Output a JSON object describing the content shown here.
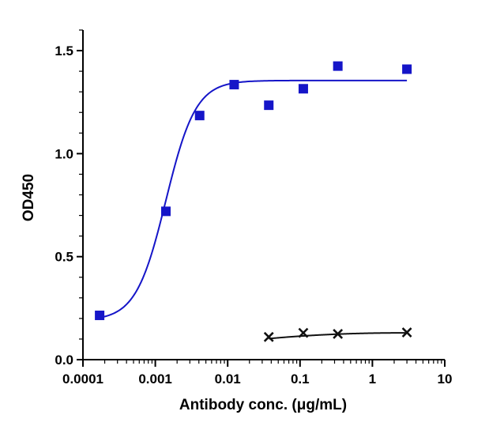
{
  "chart_data": {
    "type": "scatter",
    "title": "",
    "xlabel": "Antibody conc. (μg/mL)",
    "ylabel": "OD450",
    "xscale": "log",
    "xlim": [
      0.0001,
      10
    ],
    "ylim": [
      0,
      1.6
    ],
    "x_ticks": [
      0.0001,
      0.001,
      0.01,
      0.1,
      1,
      10
    ],
    "x_tick_labels": [
      "0.0001",
      "0.001",
      "0.01",
      "0.1",
      "1",
      "10"
    ],
    "y_ticks": [
      0,
      0.5,
      1.0,
      1.5
    ],
    "y_tick_labels": [
      "0.0",
      "0.5",
      "1.0",
      "1.5"
    ],
    "grid": false,
    "legend": "none",
    "series": [
      {
        "marker": "square",
        "color": "#1515c8",
        "x": [
          0.00017,
          0.0014,
          0.0041,
          0.0123,
          0.037,
          0.111,
          0.333,
          3.0
        ],
        "y": [
          0.215,
          0.72,
          1.185,
          1.335,
          1.235,
          1.315,
          1.425,
          1.41
        ],
        "fit": {
          "model": "4PL",
          "bottom": 0.19,
          "top": 1.355,
          "ec50": 0.0014,
          "hill": 2.1,
          "x_range": [
            0.00017,
            3.0
          ]
        }
      },
      {
        "marker": "x",
        "color": "#111111",
        "x": [
          0.037,
          0.111,
          0.333,
          3.0
        ],
        "y": [
          0.11,
          0.13,
          0.125,
          0.132
        ],
        "fit": {
          "model": "smooth",
          "x_range": [
            0.037,
            3.0
          ],
          "y_start": 0.102,
          "y_end": 0.13
        }
      }
    ]
  }
}
